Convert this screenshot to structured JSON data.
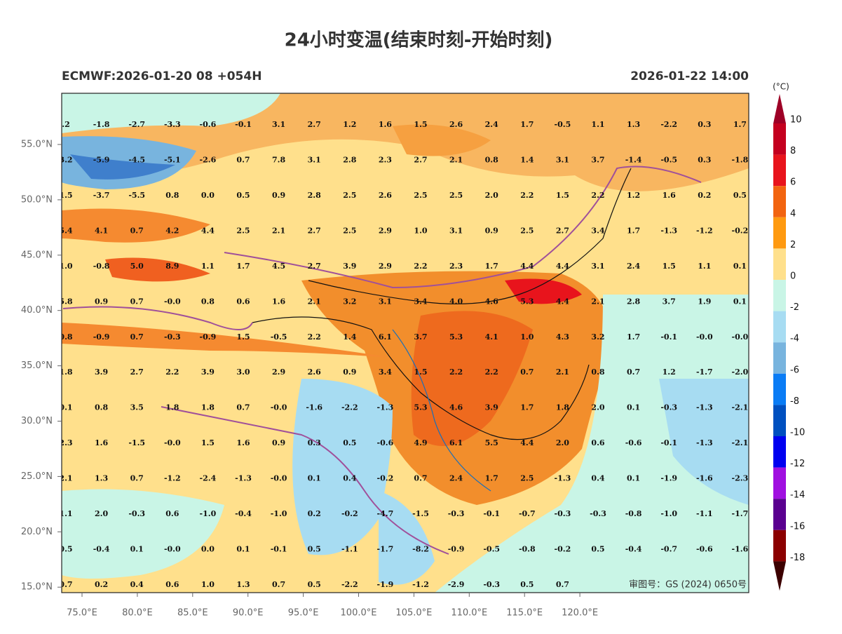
{
  "title": "24小时变温(结束时刻-开始时刻)",
  "subtitle_left": "ECMWF:2026-01-20 08 +054H",
  "subtitle_right": "2026-01-22 14:00",
  "lat_labels": [
    "55.0°N",
    "50.0°N",
    "45.0°N",
    "40.0°N",
    "35.0°N",
    "30.0°N",
    "25.0°N",
    "20.0°N",
    "15.0°N"
  ],
  "lon_labels": [
    "75.0°E",
    "80.0°E",
    "85.0°E",
    "90.0°E",
    "95.0°E",
    "100.0°E",
    "105.0°E",
    "110.0°E",
    "115.0°E",
    "120.0°E"
  ],
  "grid_values": [
    [
      ".2",
      "-1.8",
      "-2.7",
      "-3.3",
      "-0.6",
      "-0.1",
      "3.1",
      "2.7",
      "1.2",
      "1.6",
      "1.5",
      "2.6",
      "2.4",
      "1.7",
      "-0.5",
      "1.1",
      "1.3",
      "-2.2",
      "0.3",
      "1.7"
    ],
    [
      "3.2",
      "-5.9",
      "-4.5",
      "-5.1",
      "-2.6",
      "0.7",
      "7.8",
      "3.1",
      "2.8",
      "2.3",
      "2.7",
      "2.1",
      "0.8",
      "1.4",
      "3.1",
      "3.7",
      "-1.4",
      "-0.5",
      "0.3",
      "-1.8"
    ],
    [
      "1.5",
      "-3.7",
      "-5.5",
      "0.8",
      "0.0",
      "0.5",
      "0.9",
      "2.8",
      "2.5",
      "2.6",
      "2.5",
      "2.5",
      "2.0",
      "2.2",
      "1.5",
      "2.2",
      "1.2",
      "1.6",
      "0.2",
      "0.5"
    ],
    [
      "5.4",
      "4.1",
      "0.7",
      "4.2",
      "4.4",
      "2.5",
      "2.1",
      "2.7",
      "2.5",
      "2.9",
      "1.0",
      "3.1",
      "0.9",
      "2.5",
      "2.7",
      "3.4",
      "1.7",
      "-1.3",
      "-1.2",
      "-0.2"
    ],
    [
      "1.0",
      "-0.8",
      "5.0",
      "8.9",
      "1.1",
      "1.7",
      "4.5",
      "2.7",
      "3.9",
      "2.9",
      "2.2",
      "2.3",
      "1.7",
      "4.4",
      "4.4",
      "3.1",
      "2.4",
      "1.5",
      "1.1",
      "0.1"
    ],
    [
      "5.8",
      "0.9",
      "0.7",
      "-0.0",
      "0.8",
      "0.6",
      "1.6",
      "2.1",
      "3.2",
      "3.1",
      "3.4",
      "4.0",
      "4.6",
      "5.3",
      "4.4",
      "2.1",
      "2.8",
      "3.7",
      "1.9",
      "0.1"
    ],
    [
      "0.8",
      "-0.9",
      "0.7",
      "-0.3",
      "-0.9",
      "1.5",
      "-0.5",
      "2.2",
      "1.4",
      "6.1",
      "3.7",
      "5.3",
      "4.1",
      "1.0",
      "4.3",
      "3.2",
      "1.7",
      "-0.1",
      "-0.0",
      "-0.0"
    ],
    [
      "1.8",
      "3.9",
      "2.7",
      "2.2",
      "3.9",
      "3.0",
      "2.9",
      "2.6",
      "0.9",
      "3.4",
      "1.5",
      "2.2",
      "2.2",
      "0.7",
      "2.1",
      "0.8",
      "0.7",
      "1.2",
      "-1.7",
      "-2.0"
    ],
    [
      "0.1",
      "0.8",
      "3.5",
      "1.8",
      "1.8",
      "0.7",
      "-0.0",
      "-1.6",
      "-2.2",
      "-1.3",
      "5.3",
      "4.6",
      "3.9",
      "1.7",
      "1.8",
      "2.0",
      "0.1",
      "-0.3",
      "-1.3",
      "-2.1"
    ],
    [
      "2.3",
      "1.6",
      "-1.5",
      "-0.0",
      "1.5",
      "1.6",
      "0.9",
      "0.3",
      "0.5",
      "-0.6",
      "4.9",
      "6.1",
      "5.5",
      "4.4",
      "2.0",
      "0.6",
      "-0.6",
      "-0.1",
      "-1.3",
      "-2.1"
    ],
    [
      "2.1",
      "1.3",
      "0.7",
      "-1.2",
      "-2.4",
      "-1.3",
      "-0.0",
      "0.1",
      "0.4",
      "-0.2",
      "0.7",
      "2.4",
      "1.7",
      "2.5",
      "-1.3",
      "0.4",
      "0.1",
      "-1.9",
      "-1.6",
      "-2.3"
    ],
    [
      "1.1",
      "2.0",
      "-0.3",
      "0.6",
      "-1.0",
      "-0.4",
      "-1.0",
      "0.2",
      "-0.2",
      "-4.7",
      "-1.5",
      "-0.3",
      "-0.1",
      "-0.7",
      "-0.3",
      "-0.3",
      "-0.8",
      "-1.0",
      "-1.1",
      "-1.7"
    ],
    [
      "0.5",
      "-0.4",
      "0.1",
      "-0.0",
      "0.0",
      "0.1",
      "-0.1",
      "0.5",
      "-1.1",
      "-1.7",
      "-8.2",
      "-0.9",
      "-0.5",
      "-0.8",
      "-0.2",
      "0.5",
      "-0.4",
      "-0.7",
      "-0.6",
      "-1.6"
    ],
    [
      "0.7",
      "0.2",
      "0.4",
      "0.6",
      "1.0",
      "1.3",
      "0.7",
      "0.5",
      "-2.2",
      "-1.9",
      "-1.2",
      "-2.9",
      "-0.3",
      "0.5",
      "0.7"
    ]
  ],
  "map_note": "审图号：GS (2024) 0650号",
  "colorbar": {
    "unit": "(°C)",
    "labels": [
      10,
      8,
      6,
      4,
      2,
      0,
      -2,
      -4,
      -6,
      -8,
      -10,
      -12,
      -14,
      -16,
      -18
    ],
    "colors": [
      "#9e0026",
      "#c4001f",
      "#e8141c",
      "#f26410",
      "#ff9a10",
      "#ffe08c",
      "#c9f5e6",
      "#a7dcf2",
      "#78b4de",
      "#0a7cf5",
      "#0050c0",
      "#0000f0",
      "#a010e0",
      "#5a0090",
      "#8b0000",
      "#3c0000"
    ]
  }
}
